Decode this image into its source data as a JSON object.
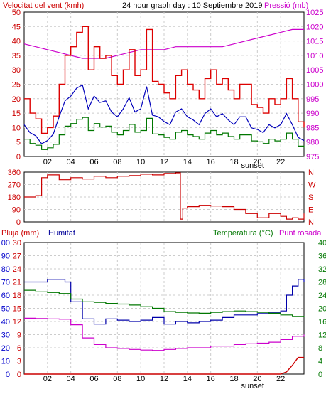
{
  "panel1": {
    "title": "24 hour graph day : 10 Septiembre 2019",
    "left_label": "Velocitat del vent (kmh)",
    "right_label": "Pressió (mb)",
    "left_ticks": [
      "0",
      "5",
      "10",
      "15",
      "20",
      "25",
      "30",
      "35",
      "40",
      "45",
      "50"
    ],
    "right_ticks": [
      "975",
      "980",
      "985",
      "990",
      "995",
      "1000",
      "1005",
      "1010",
      "1015",
      "1020",
      "1025"
    ]
  },
  "panel2": {
    "left_ticks": [
      "0",
      "90",
      "180",
      "270",
      "360"
    ],
    "right_ticks": [
      "N",
      "E",
      "S",
      "W",
      "N"
    ]
  },
  "panel3": {
    "rain_label": "Pluja (mm)",
    "hum_label": "Humitat",
    "temp_label": "Temperatura (°C)",
    "dew_label": "Punt rosada",
    "rain_ticks": [
      "0",
      "3",
      "6",
      "9",
      "12",
      "15",
      "18",
      "21",
      "24",
      "27",
      "30"
    ],
    "hum_ticks": [
      "0",
      "10",
      "20",
      "30",
      "40",
      "50",
      "60",
      "70",
      "80",
      "90",
      "100"
    ],
    "temp_ticks": [
      "0",
      "4",
      "8",
      "12",
      "16",
      "20",
      "24",
      "28",
      "32",
      "36",
      "40"
    ]
  },
  "x_labels": [
    "02",
    "04",
    "06",
    "08",
    "10",
    "12",
    "14",
    "16",
    "18",
    "20",
    "22"
  ],
  "sunset_label": "sunset",
  "colors": {
    "wind_gust": "#dd0000",
    "wind_avg": "#0000bb",
    "wind_low": "#007700",
    "pressure": "#cc00cc",
    "direction": "#cc0000",
    "humidity": "#0000aa",
    "temperature": "#007700",
    "dewpoint": "#cc00cc",
    "rain": "#cc0000",
    "rain_label": "#cc0000",
    "hum_label": "#000099",
    "temp_label": "#007700",
    "dew_label": "#cc00cc",
    "left_axis": "#cc0000",
    "right_axis": "#cc00cc",
    "hum_axis": "#0000cc",
    "temp_axis": "#007700"
  },
  "chart_data": [
    {
      "type": "line",
      "title": "24 hour graph day : 10 Septiembre 2019",
      "x_unit": "hour",
      "xlim": [
        0,
        24
      ],
      "ylim": [
        0,
        50
      ],
      "y2lim": [
        975,
        1025
      ],
      "series": [
        {
          "name": "Velocitat del vent (kmh)",
          "axis": "left",
          "x": [
            0,
            0.5,
            1,
            1.5,
            2,
            2.5,
            3,
            3.5,
            4,
            4.5,
            5,
            5.5,
            6,
            6.5,
            7,
            7.5,
            8,
            8.5,
            9,
            9.5,
            10,
            10.5,
            11,
            11.5,
            12,
            12.5,
            13,
            13.5,
            14,
            14.5,
            15,
            15.5,
            16,
            16.5,
            17,
            17.5,
            18,
            18.5,
            19,
            19.5,
            20,
            20.5,
            21,
            21.5,
            22,
            22.5,
            23,
            23.5,
            24
          ],
          "values": [
            20,
            15,
            13,
            8,
            10,
            14,
            25,
            35,
            38,
            43,
            45,
            30,
            38,
            34,
            35,
            28,
            25,
            30,
            37,
            28,
            30,
            44,
            26,
            25,
            22,
            20,
            28,
            30,
            25,
            23,
            20,
            27,
            30,
            25,
            27,
            23,
            20,
            25,
            25,
            18,
            17,
            15,
            20,
            18,
            20,
            27,
            20,
            12,
            10
          ]
        },
        {
          "name": "Pressió (mb)",
          "axis": "right",
          "x": [
            0,
            1,
            2,
            3,
            4,
            5,
            6,
            7,
            8,
            9,
            10,
            11,
            12,
            13,
            14,
            15,
            16,
            17,
            18,
            19,
            20,
            21,
            22,
            23,
            24
          ],
          "values": [
            1014,
            1013,
            1012,
            1011,
            1010,
            1009,
            1009,
            1009,
            1010,
            1011,
            1012,
            1012,
            1012,
            1013,
            1013,
            1013,
            1013,
            1013,
            1014,
            1015,
            1016,
            1017,
            1018,
            1019,
            1019
          ]
        }
      ]
    },
    {
      "type": "line",
      "x_unit": "hour",
      "xlim": [
        0,
        24
      ],
      "ylim": [
        0,
        360
      ],
      "series": [
        {
          "name": "direction",
          "x": [
            0,
            1,
            1.5,
            2,
            3,
            4,
            5,
            6,
            7,
            8,
            9,
            10,
            11,
            12,
            13,
            13.4,
            13.6,
            14,
            15,
            16,
            17,
            18,
            19,
            20,
            21,
            22,
            22.5,
            23,
            23.5,
            24
          ],
          "values": [
            180,
            190,
            320,
            340,
            305,
            320,
            310,
            330,
            320,
            330,
            335,
            345,
            340,
            350,
            355,
            20,
            100,
            110,
            120,
            115,
            110,
            90,
            60,
            30,
            60,
            40,
            20,
            30,
            20,
            60
          ]
        }
      ]
    },
    {
      "type": "line",
      "x_unit": "hour",
      "xlim": [
        0,
        24
      ],
      "ylim": [
        0,
        100
      ],
      "series": [
        {
          "name": "Humitat",
          "axis": "hum",
          "x": [
            0,
            1,
            2,
            3,
            3.5,
            4,
            5,
            6,
            7,
            8,
            9,
            10,
            11,
            12,
            13,
            14,
            15,
            16,
            17,
            18,
            19,
            20,
            21,
            22,
            22.5,
            23,
            23.5,
            24
          ],
          "values": [
            70,
            70,
            72,
            72,
            70,
            55,
            42,
            38,
            42,
            41,
            40,
            41,
            43,
            38,
            40,
            39,
            40,
            41,
            43,
            45,
            45,
            46,
            47,
            48,
            60,
            67,
            72,
            70
          ]
        },
        {
          "name": "Temperatura (°C)",
          "axis": "temp",
          "x": [
            0,
            1,
            2,
            3,
            4,
            5,
            6,
            7,
            8,
            9,
            10,
            11,
            12,
            13,
            14,
            15,
            16,
            17,
            18,
            19,
            20,
            21,
            22,
            23,
            24
          ],
          "values": [
            25.5,
            25.0,
            24.8,
            24.5,
            22.8,
            22.0,
            21.8,
            21.5,
            21.3,
            21.0,
            20.5,
            20.0,
            19.0,
            18.8,
            18.6,
            18.5,
            18.8,
            19.0,
            19.2,
            19.0,
            18.8,
            18.5,
            18.0,
            17.5,
            17.3
          ]
        },
        {
          "name": "Punt rosada",
          "axis": "temp",
          "x": [
            0,
            1,
            2,
            3,
            4,
            5,
            6,
            7,
            8,
            9,
            10,
            11,
            12,
            13,
            14,
            15,
            16,
            17,
            18,
            19,
            20,
            21,
            22,
            23,
            24
          ],
          "values": [
            17.0,
            16.9,
            16.8,
            16.7,
            15.0,
            11.0,
            9.0,
            8.0,
            7.8,
            7.5,
            7.3,
            7.2,
            7.5,
            7.8,
            8.0,
            8.0,
            8.5,
            8.5,
            9.0,
            9.2,
            9.4,
            9.7,
            10.5,
            11.5,
            12.0
          ]
        },
        {
          "name": "Pluja (mm)",
          "axis": "rain",
          "x": [
            0,
            21,
            22,
            22.5,
            23,
            23.5,
            24
          ],
          "values": [
            0,
            0,
            0,
            0.5,
            2.0,
            3.8,
            3.8
          ]
        }
      ]
    }
  ]
}
